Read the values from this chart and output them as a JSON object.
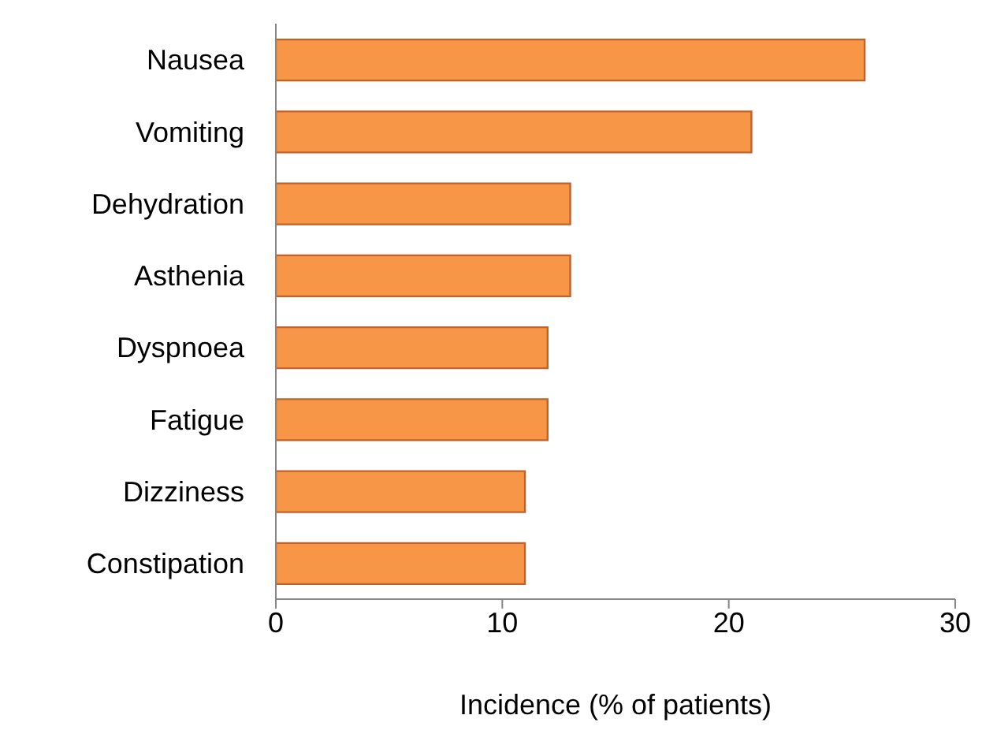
{
  "chart_data": {
    "type": "bar",
    "orientation": "horizontal",
    "xlabel": "Incidence (% of patients)",
    "categories": [
      "Nausea",
      "Vomiting",
      "Dehydration",
      "Asthenia",
      "Dyspnoea",
      "Fatigue",
      "Dizziness",
      "Constipation"
    ],
    "values": [
      26,
      21,
      13,
      13,
      12,
      12,
      11,
      11
    ],
    "color": "#f79646",
    "xlim": [
      0,
      30
    ],
    "xticks": [
      0,
      10,
      20,
      30
    ],
    "grid": false
  }
}
